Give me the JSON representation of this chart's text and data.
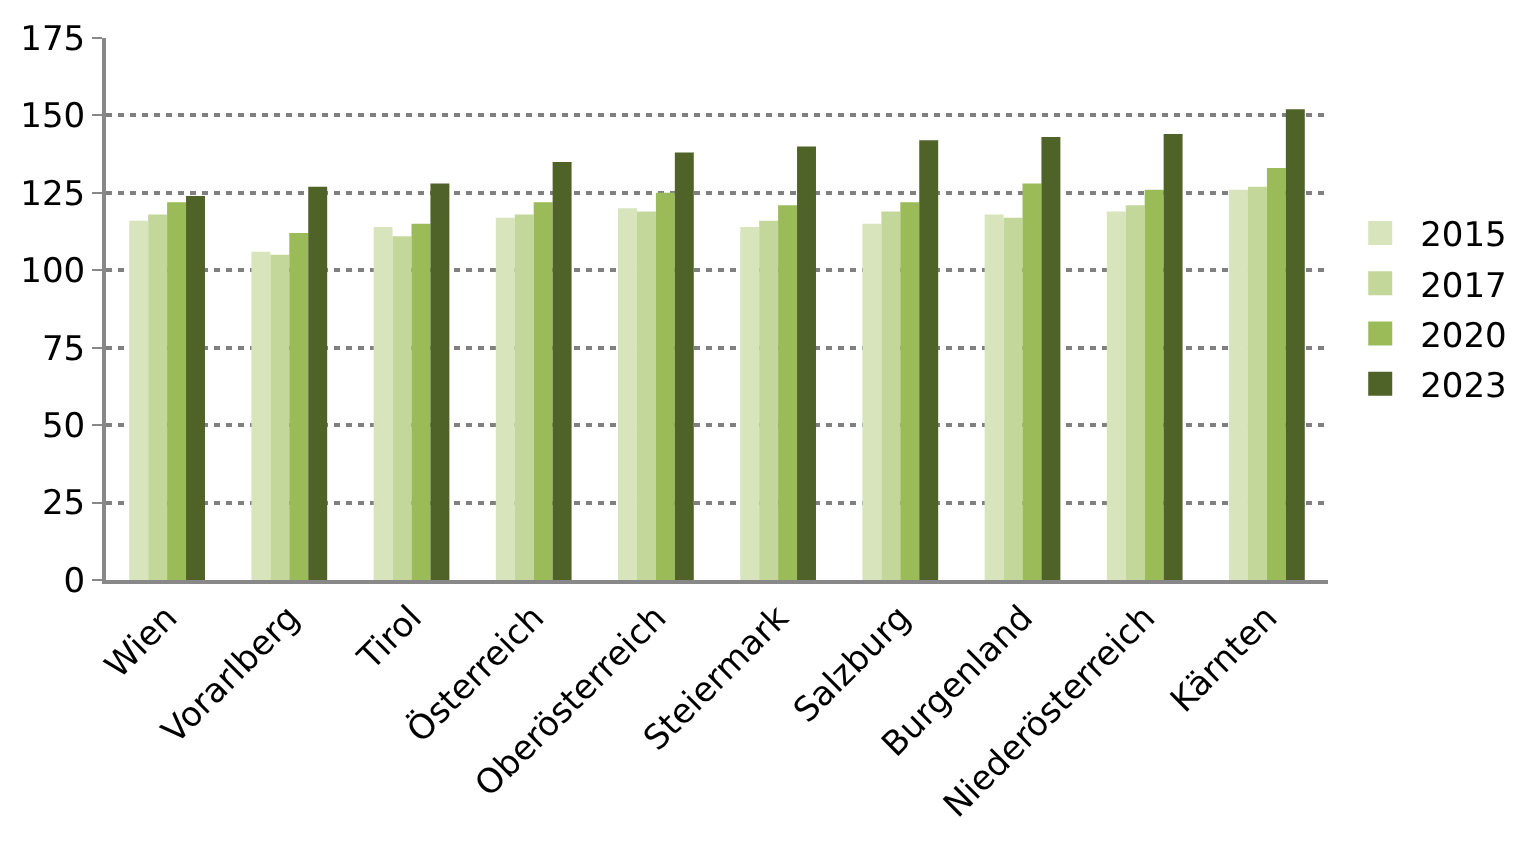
{
  "chart_data": {
    "type": "bar",
    "categories": [
      "Wien",
      "Vorarlberg",
      "Tirol",
      "Österreich",
      "Oberösterreich",
      "Steiermark",
      "Salzburg",
      "Burgenland",
      "Niederösterreich",
      "Kärnten"
    ],
    "series": [
      {
        "name": "2015",
        "color": "#d8e4bc",
        "values": [
          116,
          106,
          114,
          117,
          120,
          114,
          115,
          118,
          119,
          126
        ]
      },
      {
        "name": "2017",
        "color": "#c4d79b",
        "values": [
          118,
          105,
          111,
          118,
          119,
          116,
          119,
          117,
          121,
          127
        ]
      },
      {
        "name": "2020",
        "color": "#9bbb59",
        "values": [
          122,
          112,
          115,
          122,
          125,
          121,
          122,
          128,
          126,
          133
        ]
      },
      {
        "name": "2023",
        "color": "#4f6228",
        "values": [
          124,
          127,
          128,
          135,
          138,
          140,
          142,
          143,
          144,
          152
        ]
      }
    ],
    "ylim": [
      0,
      175
    ],
    "yticks": [
      0,
      25,
      50,
      75,
      100,
      125,
      150,
      175
    ],
    "grid": "y",
    "legend": "right"
  }
}
